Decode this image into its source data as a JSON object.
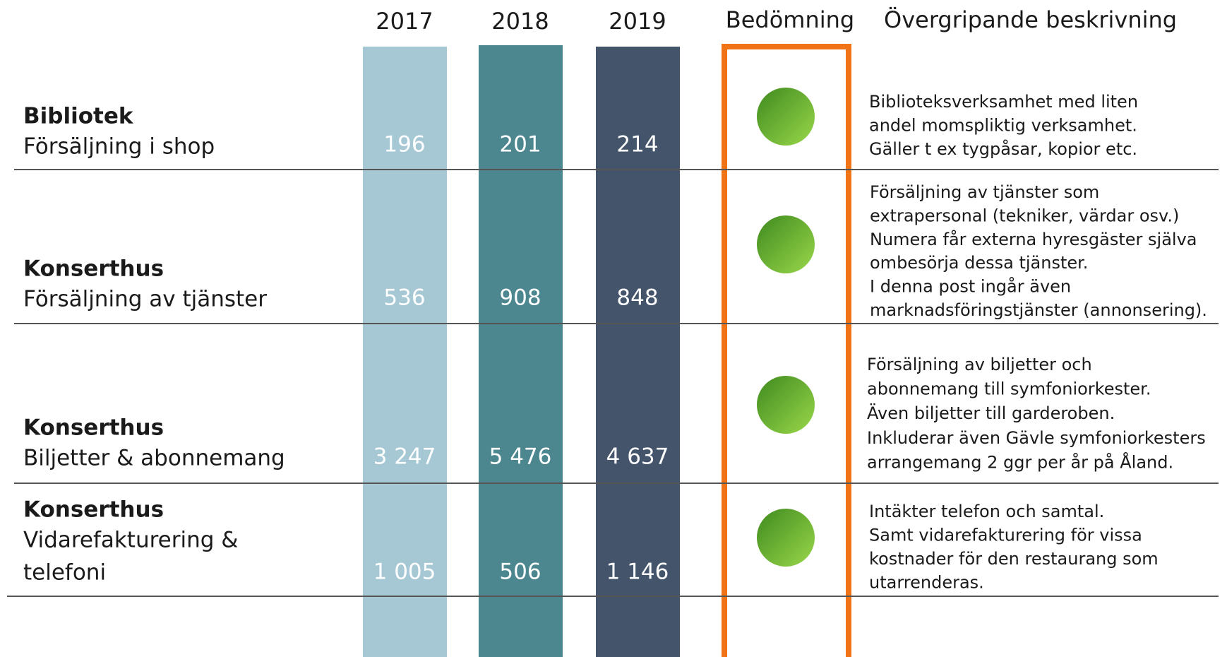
{
  "header": {
    "years": [
      "2017",
      "2018",
      "2019"
    ],
    "assessment": "Bedömning",
    "description": "Övergripande beskrivning"
  },
  "rows": [
    {
      "title": "Bibliotek",
      "subtitle": [
        "Försäljning i shop"
      ],
      "values": [
        "196",
        "201",
        "214"
      ],
      "description": [
        "Biblioteksverksamhet med liten",
        "andel momspliktig verksamhet.",
        "Gäller t ex tygpåsar, kopior etc."
      ]
    },
    {
      "title": "Konserthus",
      "subtitle": [
        "Försäljning av tjänster"
      ],
      "values": [
        "536",
        "908",
        "848"
      ],
      "description": [
        "Försäljning av tjänster som",
        "extrapersonal (tekniker, värdar osv.)",
        "Numera får externa hyresgäster själva",
        "ombesörja dessa tjänster.",
        "I denna post ingår även",
        "marknadsföringstjänster (annonsering)."
      ]
    },
    {
      "title": "Konserthus",
      "subtitle": [
        "Biljetter & abonnemang"
      ],
      "values": [
        "3 247",
        "5 476",
        "4 637"
      ],
      "description": [
        "Försäljning av biljetter och",
        "abonnemang till symfoniorkester.",
        "Även biljetter till garderoben.",
        "Inkluderar även Gävle symfoniorkesters",
        "arrangemang 2 ggr per år på Åland."
      ]
    },
    {
      "title": "Konserthus",
      "subtitle": [
        "Vidarefakturering &",
        "telefoni"
      ],
      "values": [
        "1 005",
        "506",
        "1 146"
      ],
      "description": [
        "Intäkter telefon och samtal.",
        "Samt vidarefakturering för vissa",
        "kostnader för den restaurang som",
        "utarrenderas."
      ]
    }
  ]
}
